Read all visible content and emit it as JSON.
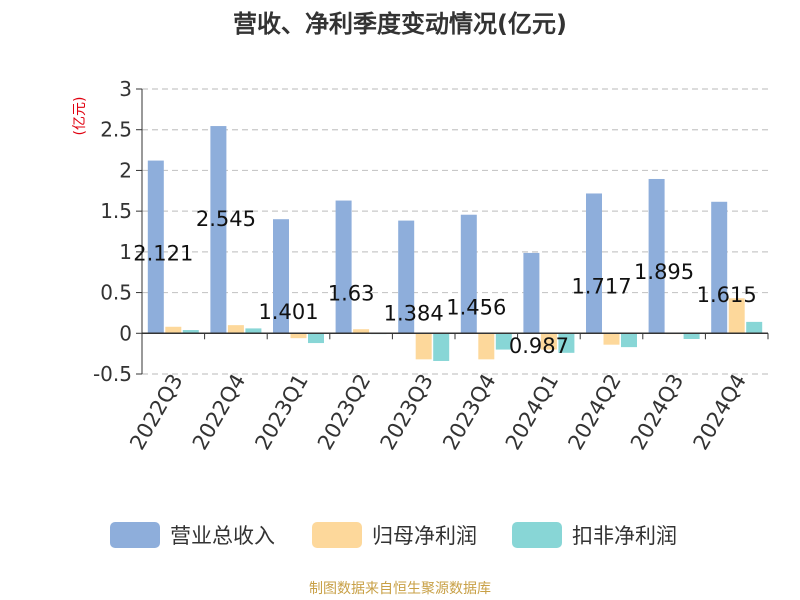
{
  "colors": {
    "revenue": "#8eaedb",
    "parent_net_profit": "#fdd89b",
    "deducted_net_profit": "#88d6d6",
    "ylabel": "#e0000f",
    "grid": "#c8c8c8",
    "axis": "#333333",
    "footer": "#c8a046"
  },
  "footer": "制图数据来自恒生聚源数据库",
  "chart_data": {
    "type": "bar",
    "title": "营收、净利季度变动情况(亿元)",
    "ylabel": "(亿元)",
    "xlabel": "",
    "ylim": [
      -0.5,
      3
    ],
    "yticks": [
      3,
      2.5,
      2,
      1.5,
      1,
      0.5,
      0,
      -0.5
    ],
    "grid": true,
    "legend_position": "bottom",
    "categories": [
      "2022Q3",
      "2022Q4",
      "2023Q1",
      "2023Q2",
      "2023Q3",
      "2023Q4",
      "2024Q1",
      "2024Q2",
      "2024Q3",
      "2024Q4"
    ],
    "series": [
      {
        "name": "营业总收入",
        "values": [
          2.121,
          2.545,
          1.401,
          1.63,
          1.384,
          1.456,
          0.987,
          1.717,
          1.895,
          1.615
        ],
        "labels": [
          "2.121",
          "2.545",
          "1.401",
          "1.63",
          "1.384",
          "1.456",
          "0.987",
          "1.717",
          "1.895",
          "1.615"
        ]
      },
      {
        "name": "归母净利润",
        "values": [
          0.08,
          0.1,
          -0.06,
          0.05,
          -0.32,
          -0.32,
          -0.2,
          -0.14,
          -0.01,
          0.43
        ]
      },
      {
        "name": "扣非净利润",
        "values": [
          0.04,
          0.06,
          -0.12,
          -0.01,
          -0.34,
          -0.2,
          -0.24,
          -0.17,
          -0.07,
          0.14
        ]
      }
    ]
  }
}
